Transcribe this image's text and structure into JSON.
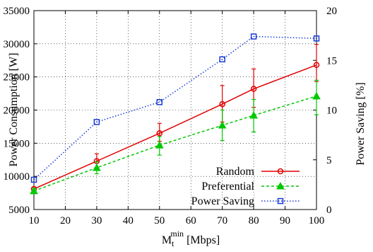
{
  "chart_data": {
    "type": "line",
    "x": [
      10,
      30,
      50,
      70,
      80,
      100
    ],
    "xlabel": {
      "main": "M",
      "sub": "t",
      "sup": "min",
      "unit": " [Mbps]"
    },
    "ylabel": "Power Consumption [W]",
    "y2label": "Power Saving [%]",
    "xlim": [
      10,
      100
    ],
    "ylim": [
      5000,
      35000
    ],
    "y2lim": [
      0,
      20
    ],
    "xticks": [
      10,
      20,
      30,
      40,
      50,
      60,
      70,
      80,
      90,
      100
    ],
    "yticks": [
      5000,
      10000,
      15000,
      20000,
      25000,
      30000,
      35000
    ],
    "y2ticks": [
      0,
      5,
      10,
      15,
      20
    ],
    "grid": true,
    "legend_position": "bottom-right",
    "series": [
      {
        "name": "Random",
        "axis": "left",
        "color": "#e00000",
        "marker": "circle",
        "line": "solid",
        "values": [
          8100,
          12300,
          16500,
          20900,
          23200,
          26800
        ],
        "err_low": [
          7700,
          11300,
          15300,
          18200,
          20400,
          24300
        ],
        "err_high": [
          8400,
          13400,
          18000,
          23700,
          26200,
          29900
        ]
      },
      {
        "name": "Preferential",
        "axis": "left",
        "color": "#00c800",
        "marker": "triangle",
        "line": "dashed",
        "values": [
          7800,
          11300,
          14700,
          17700,
          19200,
          22100
        ],
        "err_low": [
          7400,
          10400,
          13200,
          15400,
          16700,
          19300
        ],
        "err_high": [
          8200,
          12200,
          16000,
          20000,
          21600,
          24500
        ]
      },
      {
        "name": "Power Saving",
        "axis": "right",
        "color": "#1a3bd6",
        "marker": "square",
        "line": "dotted",
        "values": [
          3.0,
          8.8,
          10.8,
          15.1,
          17.4,
          17.2
        ]
      }
    ]
  }
}
